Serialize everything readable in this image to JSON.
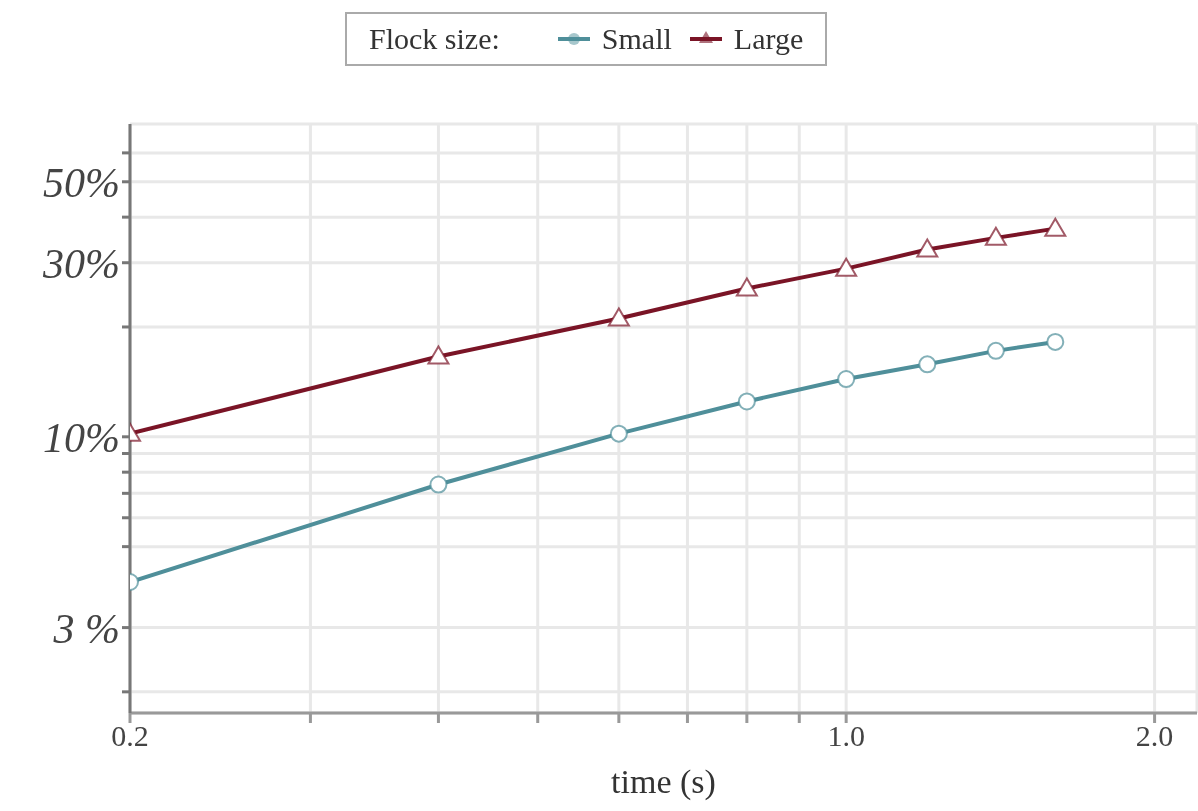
{
  "chart_data": {
    "type": "line",
    "xlabel": "time (s)",
    "legend_title": "Flock size:",
    "legend": "top",
    "grid": true,
    "log": "xy",
    "line_style": "solid",
    "x": [
      0.2,
      0.4,
      0.6,
      0.8,
      1.0,
      1.2,
      1.4,
      1.6
    ],
    "series": [
      {
        "name": "Small",
        "color": "#4f8f9a",
        "marker": "circle",
        "values": [
          4.0,
          7.4,
          10.2,
          12.5,
          14.4,
          15.8,
          17.2,
          18.2
        ]
      },
      {
        "name": "Large",
        "color": "#7a1426",
        "marker": "triangle",
        "values": [
          10.2,
          16.6,
          21.1,
          25.5,
          28.9,
          32.6,
          35.1,
          37.2
        ]
      }
    ],
    "xlim": [
      0.2,
      2.2
    ],
    "xticks": [
      {
        "value": 0.2,
        "label": "0.2"
      },
      {
        "value": 0.3,
        "label": null
      },
      {
        "value": 0.4,
        "label": null
      },
      {
        "value": 0.5,
        "label": null
      },
      {
        "value": 0.6,
        "label": null
      },
      {
        "value": 0.7,
        "label": null
      },
      {
        "value": 0.8,
        "label": null
      },
      {
        "value": 0.9,
        "label": null
      },
      {
        "value": 1.0,
        "label": "1.0"
      },
      {
        "value": 2.0,
        "label": "2.0"
      }
    ],
    "ylim": [
      1.75,
      72
    ],
    "yticks": [
      {
        "value": 2,
        "label": null
      },
      {
        "value": 3,
        "label": "3 %"
      },
      {
        "value": 5,
        "label": null
      },
      {
        "value": 6,
        "label": null
      },
      {
        "value": 7,
        "label": null
      },
      {
        "value": 8,
        "label": null
      },
      {
        "value": 9,
        "label": null
      },
      {
        "value": 10,
        "label": "10%"
      },
      {
        "value": 20,
        "label": null
      },
      {
        "value": 30,
        "label": "30%"
      },
      {
        "value": 40,
        "label": null
      },
      {
        "value": 50,
        "label": "50%"
      },
      {
        "value": 60,
        "label": null
      }
    ]
  }
}
